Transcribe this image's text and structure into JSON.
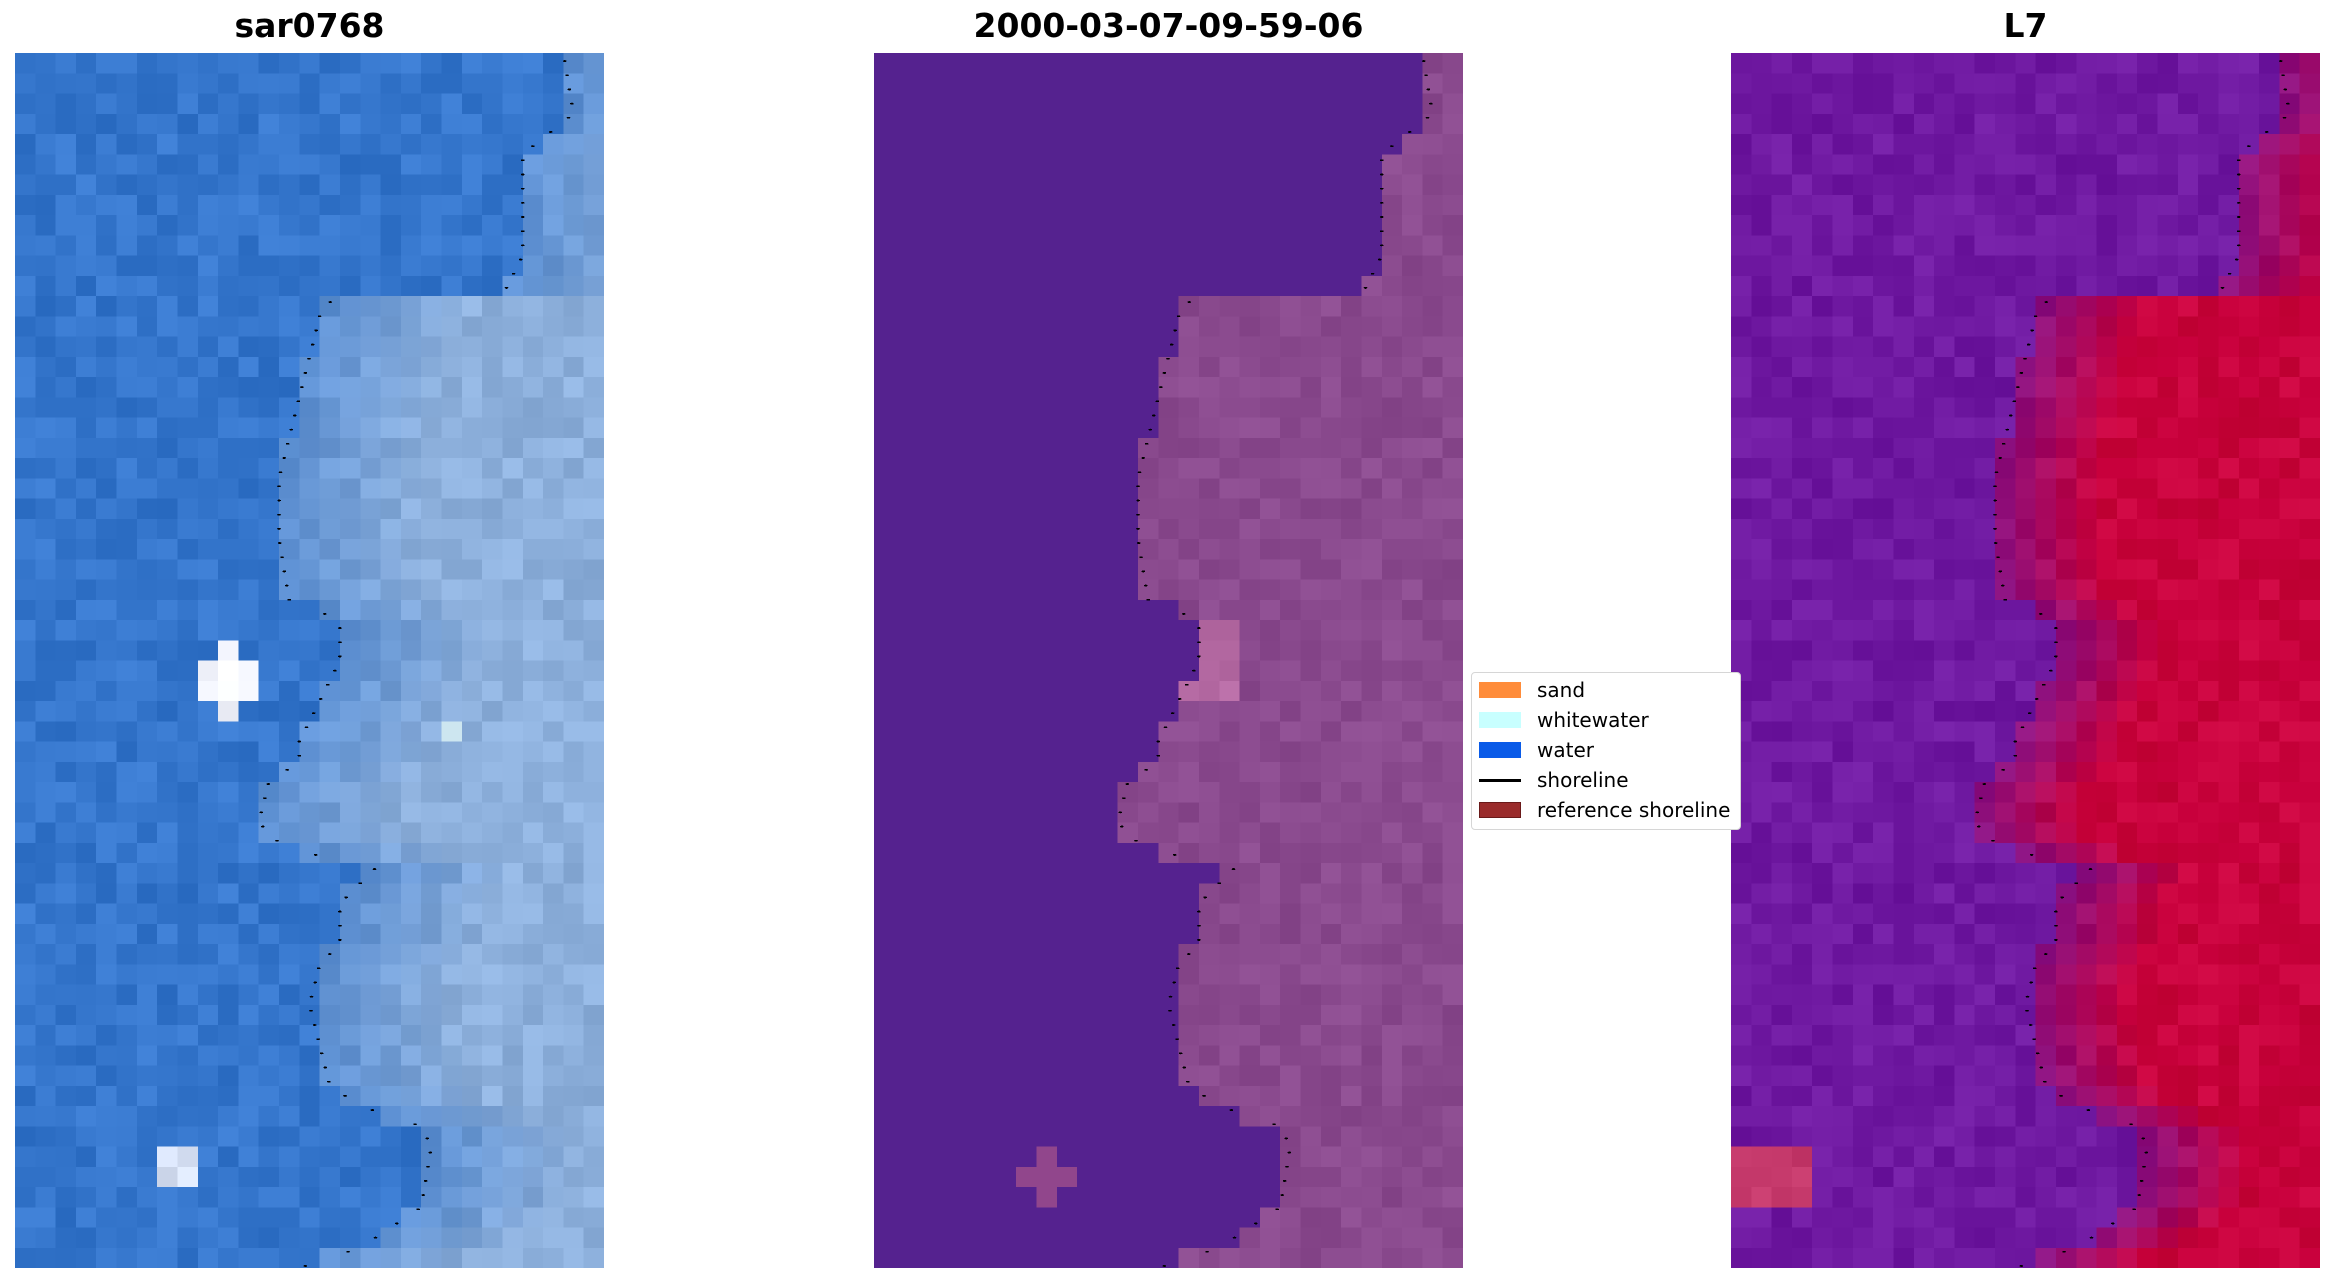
{
  "panels": [
    {
      "title": "sar0768",
      "scheme": "rgb"
    },
    {
      "title": "2000-03-07-09-59-06",
      "scheme": "class"
    },
    {
      "title": "L7",
      "scheme": "mndwi"
    }
  ],
  "legend": {
    "items": [
      {
        "label": "sand",
        "color": "#ff8c3a",
        "kind": "patch"
      },
      {
        "label": "whitewater",
        "color": "#c8ffff",
        "kind": "patch"
      },
      {
        "label": "water",
        "color": "#0a5be8",
        "kind": "patch"
      },
      {
        "label": "shoreline",
        "color": "#000000",
        "kind": "line"
      },
      {
        "label": "reference shoreline",
        "color": "#9a2c2c",
        "kind": "patch"
      }
    ]
  },
  "colors": {
    "rgb_water": "#3576cc",
    "rgb_land": "#8db0dc",
    "rgb_bright": "#f4f6ff",
    "class_water": "#55228f",
    "class_land": "#8a4a8e",
    "class_pink": "#b56aa3",
    "mndwi_water": "#6a1aa6",
    "mndwi_land": "#c8003c",
    "shoreline_dots": "#000000"
  }
}
